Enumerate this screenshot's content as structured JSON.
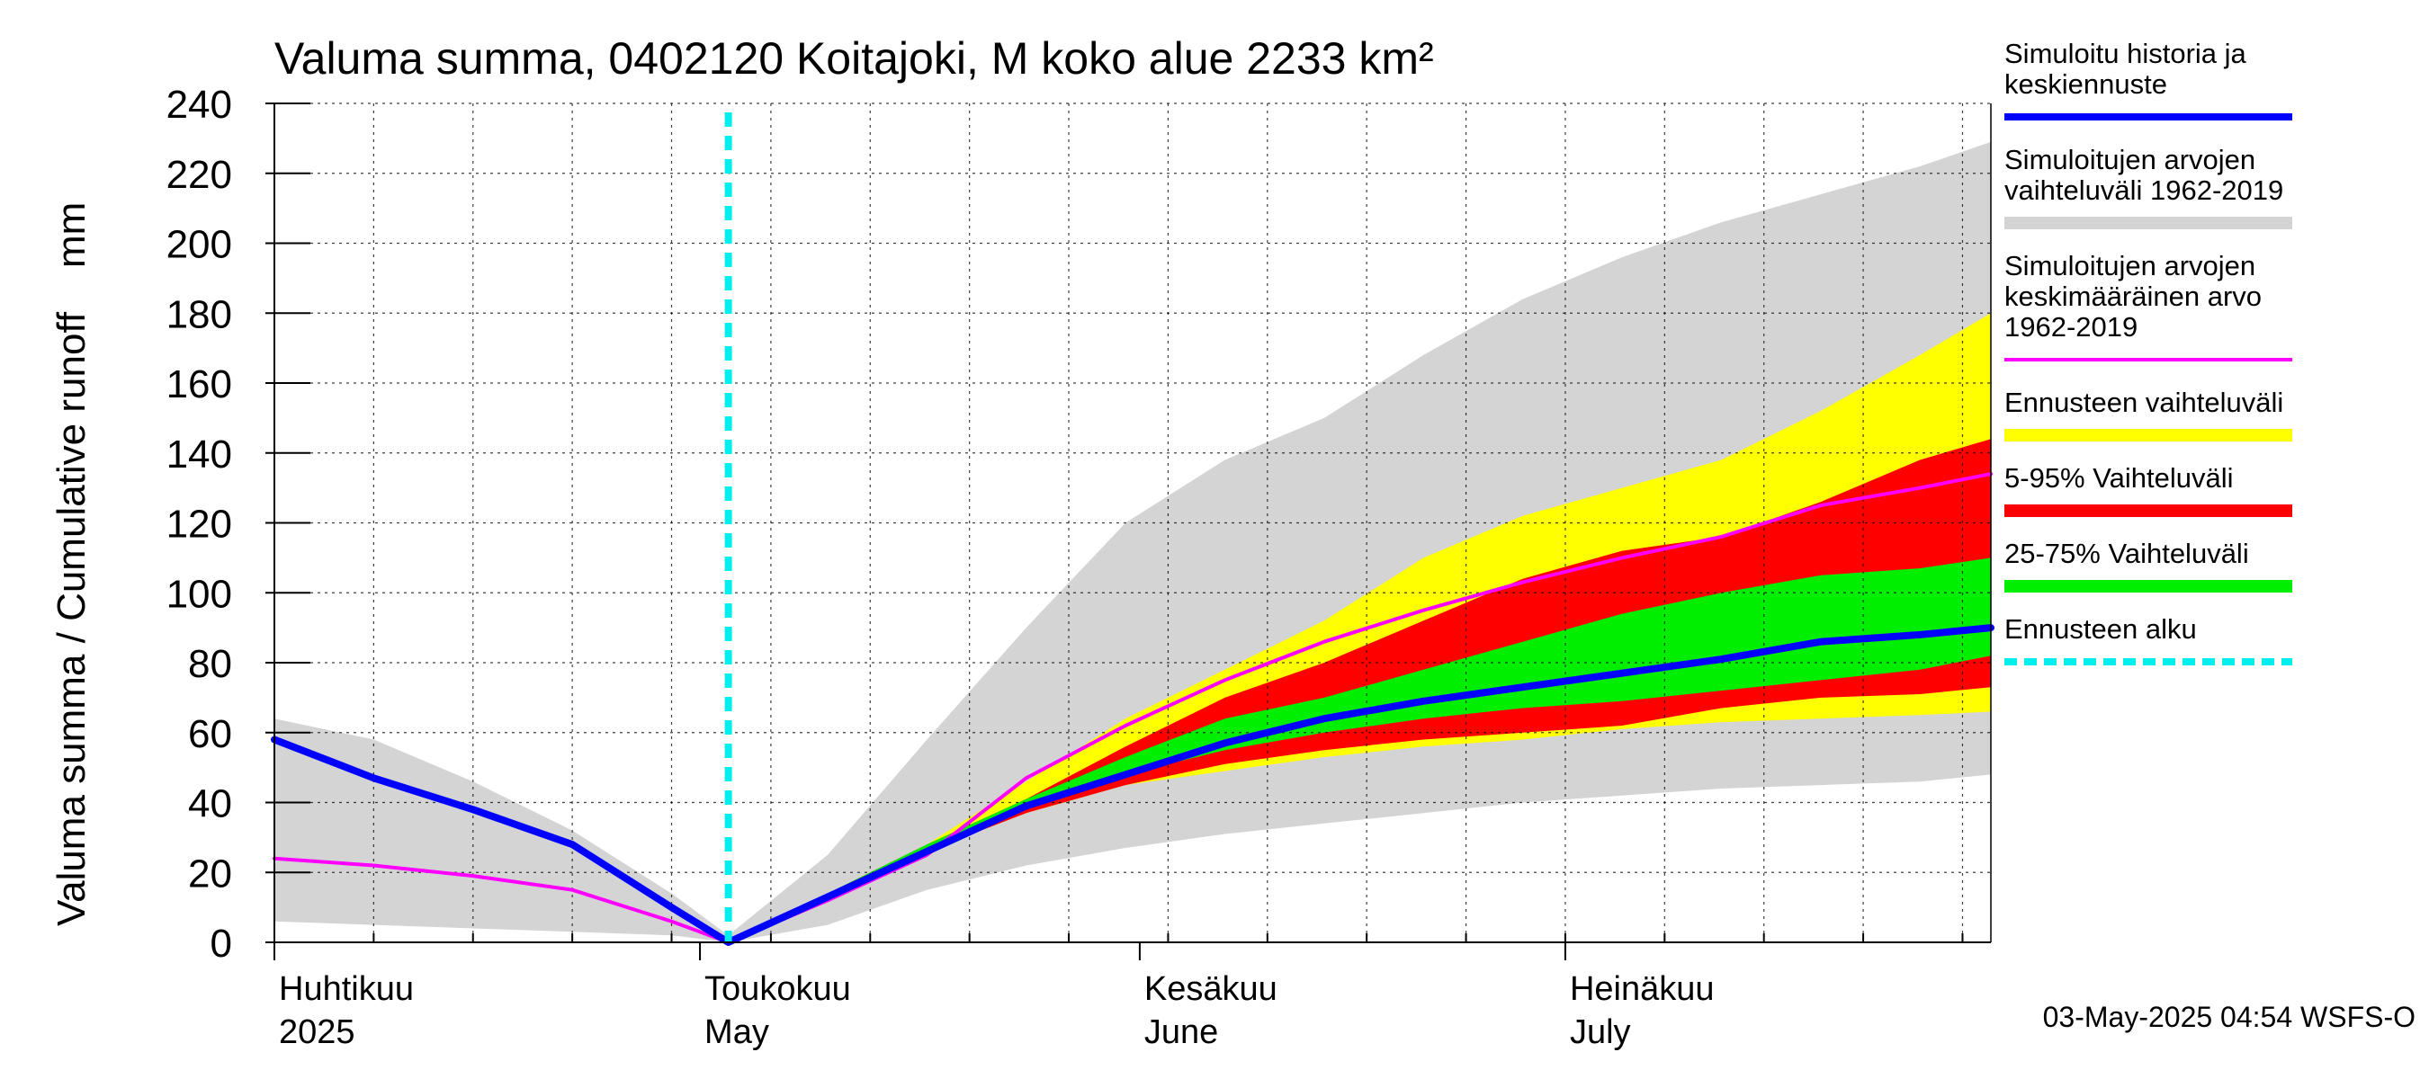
{
  "chart_data": {
    "type": "area",
    "title": "Valuma summa, 0402120 Koitajoki, M koko alue 2233 km²",
    "ylabel": "Valuma summa / Cumulative runoff    mm",
    "ylim": [
      0,
      240
    ],
    "yticks": [
      0,
      20,
      40,
      60,
      80,
      100,
      120,
      140,
      160,
      180,
      200,
      220,
      240
    ],
    "grid": true,
    "legend_position": "right",
    "x_axis": {
      "range": [
        "2025-04-01",
        "2025-07-31"
      ],
      "month_labels": [
        {
          "date": "2025-04-01",
          "fi": "Huhtikuu",
          "en": "2025"
        },
        {
          "date": "2025-05-01",
          "fi": "Toukokuu",
          "en": "May"
        },
        {
          "date": "2025-06-01",
          "fi": "Kesäkuu",
          "en": "June"
        },
        {
          "date": "2025-07-01",
          "fi": "Heinäkuu",
          "en": "July"
        }
      ]
    },
    "forecast_start": "2025-05-03",
    "footer": "03-May-2025 04:54 WSFS-O",
    "colors": {
      "history_range": "#d4d4d4",
      "forecast_range": "#ffff00",
      "p5_95": "#ff0000",
      "p25_75": "#00ee00",
      "sim_history": "#0000ff",
      "mean": "#ff00ff",
      "forecast_start": "#00eeee",
      "grid": "#000000"
    },
    "legend": [
      {
        "key": "sim_history",
        "label_lines": [
          "Simuloitu historia ja",
          "keskiennuste"
        ],
        "style": "line"
      },
      {
        "key": "history_range",
        "label_lines": [
          "Simuloitujen arvojen",
          "vaihteluväli 1962-2019"
        ],
        "style": "band"
      },
      {
        "key": "mean",
        "label_lines": [
          "Simuloitujen arvojen",
          "keskimääräinen arvo",
          "   1962-2019"
        ],
        "style": "thin"
      },
      {
        "key": "forecast_range",
        "label_lines": [
          "Ennusteen vaihteluväli"
        ],
        "style": "band"
      },
      {
        "key": "p5_95",
        "label_lines": [
          "5-95% Vaihteluväli"
        ],
        "style": "band"
      },
      {
        "key": "p25_75",
        "label_lines": [
          "25-75% Vaihteluväli"
        ],
        "style": "band"
      },
      {
        "key": "forecast_start",
        "label_lines": [
          "Ennusteen alku"
        ],
        "style": "dashed"
      }
    ],
    "series": {
      "history_range": {
        "dates": [
          "2025-04-01",
          "2025-04-08",
          "2025-04-15",
          "2025-04-22",
          "2025-04-29",
          "2025-05-03",
          "2025-05-10",
          "2025-05-17",
          "2025-05-24",
          "2025-05-31",
          "2025-06-07",
          "2025-06-14",
          "2025-06-21",
          "2025-06-28",
          "2025-07-05",
          "2025-07-12",
          "2025-07-19",
          "2025-07-26",
          "2025-07-31"
        ],
        "upper": [
          64,
          58,
          46,
          32,
          14,
          2,
          25,
          58,
          90,
          120,
          138,
          150,
          168,
          184,
          196,
          206,
          214,
          222,
          229
        ],
        "lower": [
          6,
          5,
          4,
          3,
          2,
          0,
          5,
          15,
          22,
          27,
          31,
          34,
          37,
          40,
          42,
          44,
          45,
          46,
          48
        ]
      },
      "forecast_range": {
        "dates": [
          "2025-05-03",
          "2025-05-10",
          "2025-05-17",
          "2025-05-24",
          "2025-05-31",
          "2025-06-07",
          "2025-06-14",
          "2025-06-21",
          "2025-06-28",
          "2025-07-05",
          "2025-07-12",
          "2025-07-19",
          "2025-07-26",
          "2025-07-31"
        ],
        "upper": [
          0,
          14,
          28,
          46,
          64,
          78,
          92,
          110,
          122,
          130,
          138,
          152,
          168,
          180
        ],
        "lower": [
          0,
          12,
          26,
          37,
          45,
          49,
          53,
          56,
          58,
          61,
          63,
          64,
          65,
          66
        ]
      },
      "p5_95": {
        "dates": [
          "2025-05-03",
          "2025-05-10",
          "2025-05-17",
          "2025-05-24",
          "2025-05-31",
          "2025-06-07",
          "2025-06-14",
          "2025-06-21",
          "2025-06-28",
          "2025-07-05",
          "2025-07-12",
          "2025-07-19",
          "2025-07-26",
          "2025-07-31"
        ],
        "upper": [
          0,
          14,
          28,
          41,
          56,
          70,
          80,
          92,
          104,
          112,
          116,
          126,
          138,
          144
        ],
        "lower": [
          0,
          12,
          26,
          37,
          45,
          51,
          55,
          58,
          60,
          62,
          67,
          70,
          71,
          73
        ]
      },
      "p25_75": {
        "dates": [
          "2025-05-03",
          "2025-05-10",
          "2025-05-17",
          "2025-05-24",
          "2025-05-31",
          "2025-06-07",
          "2025-06-14",
          "2025-06-21",
          "2025-06-28",
          "2025-07-05",
          "2025-07-12",
          "2025-07-19",
          "2025-07-26",
          "2025-07-31"
        ],
        "upper": [
          0,
          14,
          28,
          41,
          53,
          64,
          70,
          78,
          86,
          94,
          100,
          105,
          107,
          110
        ],
        "lower": [
          0,
          13,
          27,
          38,
          48,
          55,
          60,
          64,
          67,
          69,
          72,
          75,
          78,
          82
        ]
      },
      "sim_history": {
        "dates": [
          "2025-04-01",
          "2025-04-08",
          "2025-04-15",
          "2025-04-22",
          "2025-04-29",
          "2025-05-03",
          "2025-05-10",
          "2025-05-17",
          "2025-05-24",
          "2025-05-31",
          "2025-06-07",
          "2025-06-14",
          "2025-06-21",
          "2025-06-28",
          "2025-07-05",
          "2025-07-12",
          "2025-07-19",
          "2025-07-26",
          "2025-07-31"
        ],
        "values": [
          58,
          47,
          38,
          28,
          10,
          0,
          13,
          26,
          39,
          48,
          57,
          64,
          69,
          73,
          77,
          81,
          86,
          88,
          90
        ]
      },
      "mean": {
        "dates": [
          "2025-04-01",
          "2025-04-08",
          "2025-04-15",
          "2025-04-22",
          "2025-04-29",
          "2025-05-03",
          "2025-05-10",
          "2025-05-17",
          "2025-05-24",
          "2025-05-31",
          "2025-06-07",
          "2025-06-14",
          "2025-06-21",
          "2025-06-28",
          "2025-07-05",
          "2025-07-12",
          "2025-07-19",
          "2025-07-26",
          "2025-07-31"
        ],
        "values": [
          24,
          22,
          19,
          15,
          6,
          0,
          12,
          25,
          47,
          62,
          75,
          86,
          95,
          103,
          110,
          116,
          125,
          130,
          134
        ]
      }
    }
  }
}
